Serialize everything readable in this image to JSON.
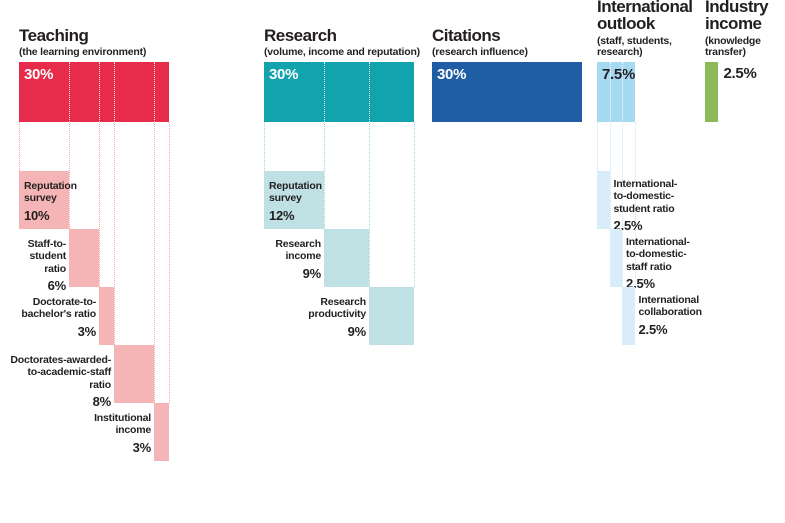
{
  "page": {
    "background": "#ffffff",
    "text_color": "#231f20"
  },
  "chart_data": {
    "type": "bar",
    "variant": "weighted-breakdown-waterfall",
    "unit": "%",
    "grand_total": 100,
    "legend_position": "none",
    "grid": "dotted-guides",
    "groups": [
      {
        "slug": "teaching",
        "title": "Teaching",
        "subtitle": "(the learning environment)",
        "total_label": "30%",
        "total_value": 30,
        "total_label_outside": false,
        "colors": {
          "bar": "#e62b4b",
          "sub_bar": "#f5b5b6",
          "dotted_line": "#f0a9ad",
          "bar_label": "#ffffff"
        },
        "items": [
          {
            "slug": "reputation-survey",
            "label": "Reputation\nsurvey",
            "pct": "10%",
            "value": 10,
            "placement": "inside"
          },
          {
            "slug": "staff-to-student-ratio",
            "label": "Staff-to-\nstudent\nratio",
            "pct": "6%",
            "value": 6,
            "placement": "left"
          },
          {
            "slug": "doctorate-to-bachelors-ratio",
            "label": "Doctorate-to-\nbachelor's ratio",
            "pct": "3%",
            "value": 3,
            "placement": "left"
          },
          {
            "slug": "doctorates-awarded-to-academic-staff-ratio",
            "label": "Doctorates-awarded-\nto-academic-staff\nratio",
            "pct": "8%",
            "value": 8,
            "placement": "left"
          },
          {
            "slug": "institutional-income",
            "label": "Institutional\nincome",
            "pct": "3%",
            "value": 3,
            "placement": "left"
          }
        ]
      },
      {
        "slug": "research",
        "title": "Research",
        "subtitle": "(volume, income and reputation)",
        "total_label": "30%",
        "total_value": 30,
        "total_label_outside": false,
        "colors": {
          "bar": "#12a3ad",
          "sub_bar": "#bfe1e3",
          "dotted_line": "#9fd4d8",
          "bar_label": "#ffffff"
        },
        "items": [
          {
            "slug": "reputation-survey",
            "label": "Reputation\nsurvey",
            "pct": "12%",
            "value": 12,
            "placement": "inside"
          },
          {
            "slug": "research-income",
            "label": "Research\nincome",
            "pct": "9%",
            "value": 9,
            "placement": "left"
          },
          {
            "slug": "research-productivity",
            "label": "Research\nproductivity",
            "pct": "9%",
            "value": 9,
            "placement": "left"
          }
        ]
      },
      {
        "slug": "citations",
        "title": "Citations",
        "subtitle": "(research influence)",
        "total_label": "30%",
        "total_value": 30,
        "total_label_outside": false,
        "colors": {
          "bar": "#1f5da5",
          "sub_bar": "#1f5da5",
          "dotted_line": "#1f5da5",
          "bar_label": "#ffffff"
        },
        "items": []
      },
      {
        "slug": "international-outlook",
        "title": "International\noutlook",
        "subtitle": "(staff, students,\nresearch)",
        "total_label": "7.5%",
        "total_value": 7.5,
        "total_label_outside": false,
        "colors": {
          "bar": "#a6daf3",
          "sub_bar": "#d9ecfa",
          "dotted_line": "#c2e4f7",
          "bar_label": "#231f20"
        },
        "items": [
          {
            "slug": "international-to-domestic-student-ratio",
            "label": "International-\nto-domestic-\nstudent ratio",
            "pct": "2.5%",
            "value": 2.5,
            "placement": "right"
          },
          {
            "slug": "international-to-domestic-staff-ratio",
            "label": "International-\nto-domestic-\nstaff ratio",
            "pct": "2.5%",
            "value": 2.5,
            "placement": "right"
          },
          {
            "slug": "international-collaboration",
            "label": "International\ncollaboration",
            "pct": "2.5%",
            "value": 2.5,
            "placement": "right"
          }
        ]
      },
      {
        "slug": "industry-income",
        "title": "Industry\nincome",
        "subtitle": "(knowledge\ntransfer)",
        "total_label": "2.5%",
        "total_value": 2.5,
        "total_label_outside": true,
        "colors": {
          "bar": "#8cba58",
          "sub_bar": "#8cba58",
          "dotted_line": "#8cba58",
          "bar_label": "#231f20"
        },
        "items": []
      }
    ]
  }
}
